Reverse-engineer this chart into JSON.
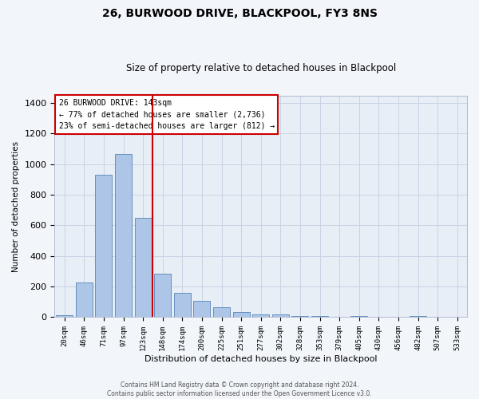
{
  "title": "26, BURWOOD DRIVE, BLACKPOOL, FY3 8NS",
  "subtitle": "Size of property relative to detached houses in Blackpool",
  "xlabel": "Distribution of detached houses by size in Blackpool",
  "ylabel": "Number of detached properties",
  "bar_labels": [
    "20sqm",
    "46sqm",
    "71sqm",
    "97sqm",
    "123sqm",
    "148sqm",
    "174sqm",
    "200sqm",
    "225sqm",
    "251sqm",
    "277sqm",
    "302sqm",
    "328sqm",
    "353sqm",
    "379sqm",
    "405sqm",
    "430sqm",
    "456sqm",
    "482sqm",
    "507sqm",
    "533sqm"
  ],
  "bar_values": [
    15,
    225,
    930,
    1065,
    650,
    285,
    160,
    105,
    65,
    35,
    20,
    20,
    10,
    10,
    0,
    10,
    0,
    0,
    8,
    0,
    0
  ],
  "bar_color": "#adc6e8",
  "bar_edge_color": "#5585b8",
  "grid_color": "#c8d4e4",
  "property_label": "26 BURWOOD DRIVE: 143sqm",
  "annotation_line1": "← 77% of detached houses are smaller (2,736)",
  "annotation_line2": "23% of semi-detached houses are larger (812) →",
  "vline_color": "#cc0000",
  "annotation_box_edge": "#cc0000",
  "ylim_max": 1450,
  "yticks": [
    0,
    200,
    400,
    600,
    800,
    1000,
    1200,
    1400
  ],
  "footer_line1": "Contains HM Land Registry data © Crown copyright and database right 2024.",
  "footer_line2": "Contains public sector information licensed under the Open Government Licence v3.0.",
  "plot_bg": "#e8eef6",
  "fig_bg": "#f2f5fa"
}
